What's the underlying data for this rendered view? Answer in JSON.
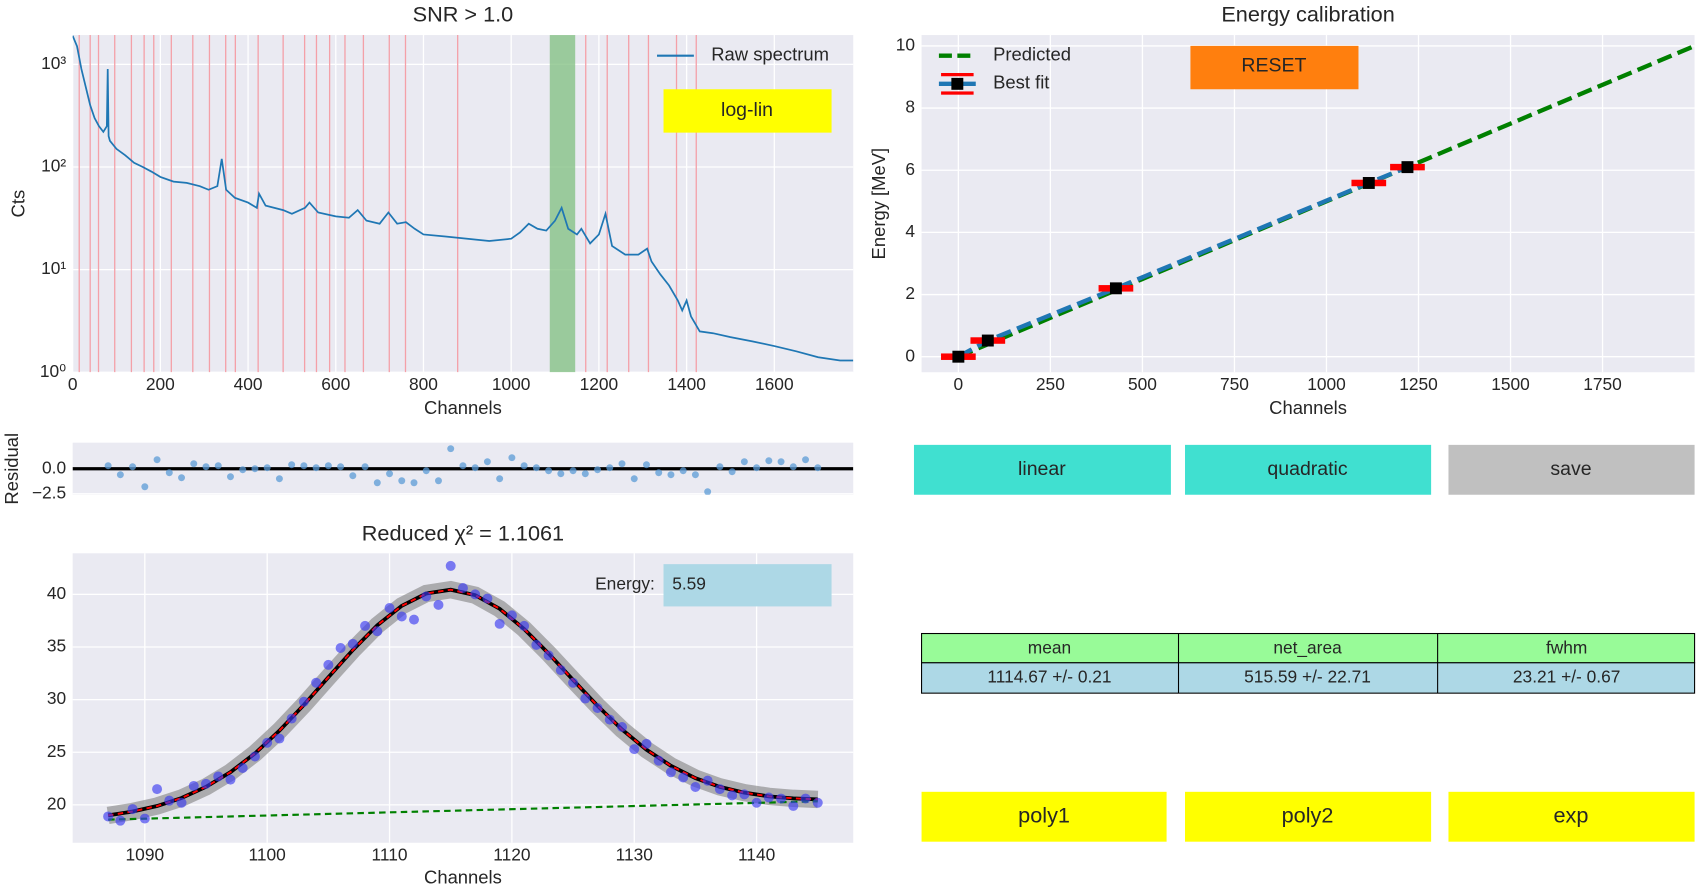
{
  "chart_data": [
    {
      "type": "line",
      "title": "SNR > 1.0",
      "xlabel": "Channels",
      "ylabel": "Cts",
      "log_y": true,
      "grid": true,
      "legend": "upper right",
      "xlim": [
        0,
        1780
      ],
      "ylim": [
        1,
        1930
      ],
      "xticks": [
        0,
        200,
        400,
        600,
        800,
        1000,
        1200,
        1400,
        1600
      ],
      "yticks": [
        {
          "value": 1,
          "label": "10⁰"
        },
        {
          "value": 10,
          "label": "10¹"
        },
        {
          "value": 100,
          "label": "10²"
        },
        {
          "value": 1000,
          "label": "10³"
        }
      ],
      "peak_lines": [
        15,
        40,
        59,
        96,
        134,
        163,
        185,
        225,
        274,
        312,
        349,
        371,
        423,
        480,
        529,
        556,
        586,
        621,
        663,
        722,
        759,
        878,
        1170,
        1219,
        1268,
        1313,
        1377,
        1422
      ],
      "peak_line_color": "#f4a0a8",
      "span": [
        1088,
        1146
      ],
      "span_color": "#7fbf7f",
      "series": [
        {
          "name": "Raw spectrum",
          "color": "#1f77b4",
          "style": "line",
          "x": [
            0,
            10,
            20,
            30,
            40,
            50,
            60,
            70,
            78,
            80,
            82,
            85,
            100,
            120,
            140,
            160,
            180,
            200,
            230,
            260,
            290,
            310,
            330,
            340,
            350,
            370,
            400,
            420,
            425,
            440,
            480,
            500,
            530,
            540,
            560,
            600,
            630,
            650,
            670,
            700,
            720,
            740,
            760,
            780,
            800,
            850,
            900,
            950,
            1000,
            1020,
            1040,
            1060,
            1080,
            1100,
            1115,
            1130,
            1150,
            1160,
            1180,
            1200,
            1215,
            1230,
            1260,
            1290,
            1310,
            1320,
            1340,
            1360,
            1380,
            1390,
            1400,
            1410,
            1430,
            1460,
            1500,
            1550,
            1600,
            1650,
            1700,
            1750,
            1780
          ],
          "values": [
            1900,
            1500,
            900,
            600,
            400,
            300,
            250,
            220,
            250,
            900,
            200,
            180,
            150,
            130,
            110,
            100,
            90,
            80,
            72,
            70,
            65,
            60,
            65,
            120,
            60,
            50,
            45,
            40,
            55,
            42,
            38,
            35,
            40,
            45,
            36,
            33,
            32,
            38,
            30,
            28,
            36,
            28,
            29,
            25,
            22,
            21,
            20,
            19,
            20,
            23,
            28,
            25,
            24,
            30,
            40,
            25,
            22,
            25,
            18,
            22,
            35,
            17,
            14,
            14,
            16,
            12,
            9,
            7,
            5,
            4,
            5,
            3.5,
            2.5,
            2.4,
            2.2,
            2.0,
            1.8,
            1.6,
            1.4,
            1.3,
            1.3
          ]
        }
      ]
    },
    {
      "type": "line",
      "title": "Energy calibration",
      "xlabel": "Channels",
      "ylabel": "Energy [MeV]",
      "grid": true,
      "legend": "upper left",
      "xlim": [
        -100,
        2000
      ],
      "ylim": [
        -0.5,
        10.35
      ],
      "xticks": [
        0,
        250,
        500,
        750,
        1000,
        1250,
        1500,
        1750
      ],
      "yticks": [
        0,
        2,
        4,
        6,
        8,
        10
      ],
      "series": [
        {
          "name": "Predicted",
          "color": "#008000",
          "style": "dashed",
          "x": [
            0,
            2000
          ],
          "values": [
            0,
            10
          ]
        },
        {
          "name": "Best fit",
          "color": "#1f77b4",
          "style": "errorbar",
          "marker_color": "#000000",
          "cap_color": "#ff0000",
          "x": [
            0,
            80,
            428,
            1115,
            1220
          ],
          "values": [
            0,
            0.52,
            2.2,
            5.59,
            6.1
          ]
        }
      ]
    },
    {
      "type": "scatter",
      "ylabel": "Residual",
      "grid": true,
      "hline": 0,
      "xlim": [
        1084.1,
        1147.9
      ],
      "ylim": [
        -2.6,
        2.6
      ],
      "yticks": [
        {
          "value": 0,
          "label": "0.0"
        },
        {
          "value": -2.5,
          "label": "−2.5"
        }
      ],
      "series": [
        {
          "color": "#5b9bd5",
          "style": "markers",
          "x": [
            1087,
            1088,
            1089,
            1090,
            1091,
            1092,
            1093,
            1094,
            1095,
            1096,
            1097,
            1098,
            1099,
            1100,
            1101,
            1102,
            1103,
            1104,
            1105,
            1106,
            1107,
            1108,
            1109,
            1110,
            1111,
            1112,
            1113,
            1114,
            1115,
            1116,
            1117,
            1118,
            1119,
            1120,
            1121,
            1122,
            1123,
            1124,
            1125,
            1126,
            1127,
            1128,
            1129,
            1130,
            1131,
            1132,
            1133,
            1134,
            1135,
            1136,
            1137,
            1138,
            1139,
            1140,
            1141,
            1142,
            1143,
            1144,
            1145
          ],
          "values": [
            0.3,
            -0.6,
            0.2,
            -1.8,
            0.9,
            -0.4,
            -0.9,
            0.5,
            0.2,
            0.3,
            -0.8,
            -0.1,
            0.0,
            0.1,
            -1.0,
            0.4,
            0.3,
            0.1,
            0.3,
            0.2,
            -0.7,
            0.2,
            -1.4,
            -0.5,
            -1.2,
            -1.4,
            -0.2,
            -1.2,
            2.0,
            0.3,
            0.1,
            0.7,
            -1.0,
            1.1,
            0.3,
            0.1,
            -0.2,
            -0.5,
            -0.2,
            -0.5,
            -0.1,
            0.1,
            0.5,
            -1.0,
            0.4,
            -0.4,
            -0.6,
            -0.2,
            -0.6,
            -2.3,
            0.2,
            -0.3,
            0.7,
            0.1,
            0.8,
            0.7,
            0.2,
            0.9,
            0.1
          ]
        }
      ]
    },
    {
      "type": "scatter",
      "title": "Reduced χ² = 1.1061",
      "xlabel": "Channels",
      "grid": true,
      "xlim": [
        1084.1,
        1147.9
      ],
      "ylim": [
        16.4,
        43.9
      ],
      "xticks": [
        1090,
        1100,
        1110,
        1120,
        1130,
        1140
      ],
      "yticks": [
        20,
        25,
        30,
        35,
        40
      ],
      "series": [
        {
          "color": "#808080",
          "style": "fit",
          "x": [
            1087,
            1089,
            1091,
            1093,
            1095,
            1097,
            1099,
            1101,
            1103,
            1105,
            1107,
            1109,
            1111,
            1113,
            1115,
            1117,
            1119,
            1121,
            1123,
            1125,
            1127,
            1129,
            1131,
            1133,
            1135,
            1137,
            1139,
            1141,
            1143,
            1145
          ],
          "values": [
            19.0,
            19.37,
            19.89,
            20.65,
            21.71,
            23.11,
            24.89,
            27.05,
            29.5,
            32.12,
            34.71,
            37.06,
            38.91,
            40.08,
            40.44,
            39.92,
            38.63,
            36.71,
            34.38,
            31.87,
            29.41,
            27.16,
            25.24,
            23.71,
            22.54,
            21.71,
            21.16,
            20.81,
            20.62,
            20.52
          ]
        },
        {
          "color": "#008000",
          "style": "dashed",
          "x": [
            1087,
            1145
          ],
          "values": [
            18.6,
            20.34
          ]
        },
        {
          "color": "#3a3af0",
          "style": "markers",
          "x": [
            1087,
            1088,
            1089,
            1090,
            1091,
            1092,
            1093,
            1094,
            1095,
            1096,
            1097,
            1098,
            1099,
            1100,
            1101,
            1102,
            1103,
            1104,
            1105,
            1106,
            1107,
            1108,
            1109,
            1110,
            1111,
            1112,
            1113,
            1114,
            1115,
            1116,
            1117,
            1118,
            1119,
            1120,
            1121,
            1122,
            1123,
            1124,
            1125,
            1126,
            1127,
            1128,
            1129,
            1130,
            1131,
            1132,
            1133,
            1134,
            1135,
            1136,
            1137,
            1138,
            1139,
            1140,
            1141,
            1142,
            1143,
            1144,
            1145
          ],
          "values": [
            18.9,
            18.5,
            19.6,
            18.7,
            21.5,
            20.4,
            20.2,
            21.8,
            22.0,
            22.7,
            22.4,
            23.5,
            24.6,
            25.9,
            26.3,
            28.2,
            29.8,
            31.6,
            33.3,
            34.9,
            35.3,
            37.0,
            36.5,
            38.7,
            37.9,
            37.6,
            39.8,
            39.0,
            42.7,
            40.6,
            40.0,
            39.6,
            37.2,
            38.0,
            37.0,
            35.2,
            34.2,
            32.8,
            31.6,
            30.1,
            29.2,
            28.1,
            27.4,
            25.3,
            25.8,
            24.2,
            23.1,
            22.6,
            21.7,
            22.3,
            21.5,
            20.9,
            21.0,
            20.2,
            20.7,
            20.6,
            19.9,
            20.6,
            20.2
          ]
        }
      ]
    }
  ],
  "energy_box": {
    "label": "Energy:",
    "value": "5.59"
  },
  "buttons": {
    "log_lin": "log-lin",
    "reset": "RESET",
    "linear": "linear",
    "quadratic": "quadratic",
    "save": "save",
    "poly1": "poly1",
    "poly2": "poly2",
    "exp": "exp"
  },
  "table": {
    "header": [
      "mean",
      "net_area",
      "fwhm"
    ],
    "rows": [
      [
        "1114.67 +/- 0.21",
        "515.59 +/- 22.71",
        "23.21 +/- 0.67"
      ]
    ]
  }
}
